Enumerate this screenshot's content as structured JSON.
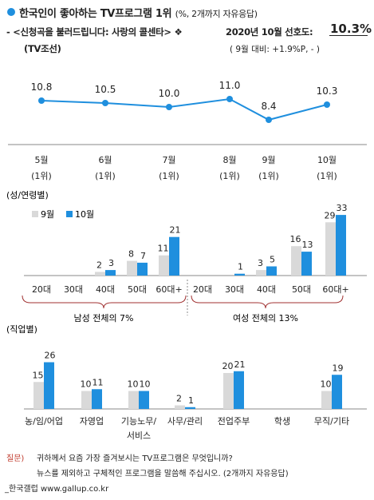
{
  "header": {
    "title": "한국인이 좋아하는 TV프로그램 1위",
    "title_note": "(%, 2개까지 자유응답)",
    "program_line": "- <신청곡을 불러드립니다: 사랑의 콜센타> ❖",
    "rate_label": "2020년 10월 선호도:",
    "rate_value": "10.3%",
    "broadcaster": "(TV조선)",
    "change_note": "( 9월 대비: +1.9%P,  -  )"
  },
  "colors": {
    "accent": "#1f8fde",
    "sept": "#d9d9d9",
    "oct": "#1f8fde",
    "bracket": "#a03030",
    "question": "#c0392b"
  },
  "chart_data": [
    {
      "type": "line",
      "categories": [
        "5월",
        "6월",
        "7월",
        "8월",
        "9월",
        "10월"
      ],
      "rank_labels": [
        "(1위)",
        "(1위)",
        "(1위)",
        "(1위)",
        "(1위)",
        "(1위)"
      ],
      "values": [
        10.8,
        10.5,
        10.0,
        11.0,
        8.4,
        10.3
      ]
    },
    {
      "type": "bar",
      "title": "(성/연령별)",
      "series": [
        {
          "name": "9월",
          "values": [
            null,
            null,
            2,
            8,
            11,
            null,
            null,
            3,
            16,
            29
          ]
        },
        {
          "name": "10월",
          "values": [
            null,
            null,
            3,
            7,
            21,
            null,
            1,
            5,
            13,
            33
          ]
        }
      ],
      "categories": [
        "20대",
        "30대",
        "40대",
        "50대",
        "60대+",
        "20대",
        "30대",
        "40대",
        "50대",
        "60대+"
      ],
      "groups": [
        {
          "label": "남성 전체의 7%"
        },
        {
          "label": "여성 전체의 13%"
        }
      ]
    },
    {
      "type": "bar",
      "title": "(직업별)",
      "categories": [
        "농/임/어업",
        "자영업",
        "기능노무/\n서비스",
        "사무/관리",
        "전업주부",
        "학생",
        "무직/기타"
      ],
      "series": [
        {
          "name": "9월",
          "values": [
            15,
            10,
            10,
            2,
            20,
            null,
            10
          ]
        },
        {
          "name": "10월",
          "values": [
            26,
            11,
            10,
            1,
            21,
            null,
            19
          ]
        }
      ]
    }
  ],
  "footer": {
    "question_label": "질문)",
    "question_line1": "귀하께서 요즘 가장 즐겨보시는 TV프로그램은 무엇입니까?",
    "question_line2": "뉴스를 제외하고 구체적인 프로그램을 말씀해 주십시오. (2개까지 자유응답)",
    "source": "_한국갤럽 www.gallup.co.kr"
  }
}
